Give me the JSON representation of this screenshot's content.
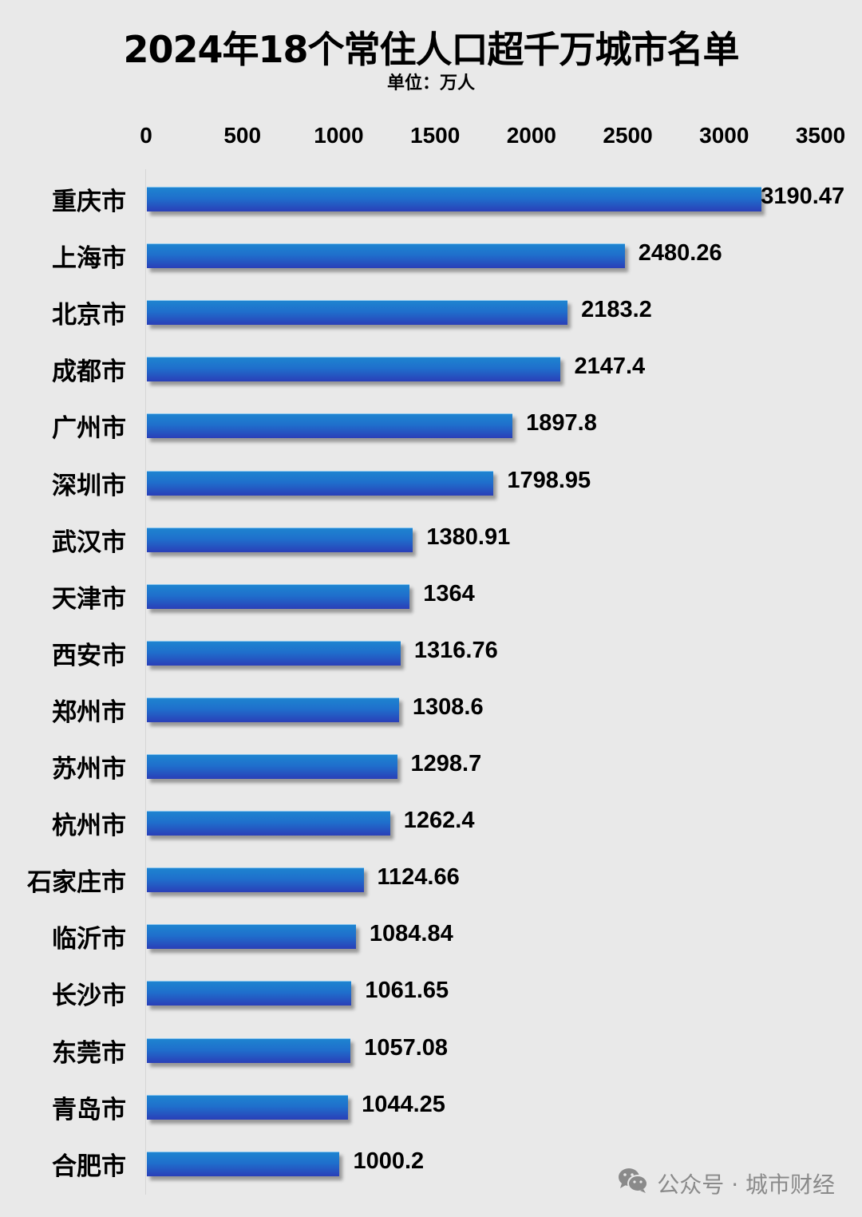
{
  "chart_data": {
    "type": "bar",
    "orientation": "horizontal",
    "title": "2024年18个常住人口超千万城市名单",
    "subtitle": "单位：万人",
    "xlabel": "",
    "ylabel": "",
    "xlim": [
      0,
      3500
    ],
    "ticks": [
      "0",
      "500",
      "1000",
      "1500",
      "2000",
      "2500",
      "3000",
      "3500"
    ],
    "tick_values": [
      0,
      500,
      1000,
      1500,
      2000,
      2500,
      3000,
      3500
    ],
    "axis_position": "top",
    "grid": false,
    "legend": null,
    "bar_color": "#1f6fcc",
    "categories": [
      "重庆市",
      "上海市",
      "北京市",
      "成都市",
      "广州市",
      "深圳市",
      "武汉市",
      "天津市",
      "西安市",
      "郑州市",
      "苏州市",
      "杭州市",
      "石家庄市",
      "临沂市",
      "长沙市",
      "东莞市",
      "青岛市",
      "合肥市"
    ],
    "values": [
      3190.47,
      2480.26,
      2183.2,
      2147.4,
      1897.8,
      1798.95,
      1380.91,
      1364,
      1316.76,
      1308.6,
      1298.7,
      1262.4,
      1124.66,
      1084.84,
      1061.65,
      1057.08,
      1044.25,
      1000.2
    ],
    "value_labels": [
      "3190.47",
      "2480.26",
      "2183.2",
      "2147.4",
      "1897.8",
      "1798.95",
      "1380.91",
      "1364",
      "1316.76",
      "1308.6",
      "1298.7",
      "1262.4",
      "1124.66",
      "1084.84",
      "1061.65",
      "1057.08",
      "1044.25",
      "1000.2"
    ]
  },
  "watermark": {
    "icon": "wechat-icon",
    "text": "公众号 · 城市财经"
  }
}
